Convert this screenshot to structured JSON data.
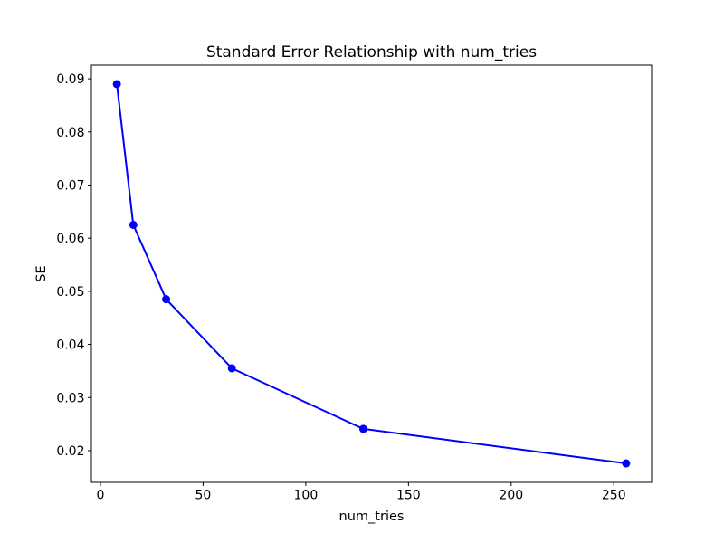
{
  "figure": {
    "background": "#ffffff"
  },
  "chart_data": {
    "type": "line",
    "title": "Standard Error Relationship with num_tries",
    "xlabel": "num_tries",
    "ylabel": "SE",
    "x": [
      8,
      16,
      32,
      64,
      128,
      256
    ],
    "y": [
      0.089,
      0.0625,
      0.0485,
      0.0355,
      0.0241,
      0.0176
    ],
    "series": [
      {
        "name": "SE",
        "x": [
          8,
          16,
          32,
          64,
          128,
          256
        ],
        "values": [
          0.089,
          0.0625,
          0.0485,
          0.0355,
          0.0241,
          0.0176
        ]
      }
    ],
    "xticks": [
      0,
      50,
      100,
      150,
      200,
      250
    ],
    "yticks": [
      0.02,
      0.03,
      0.04,
      0.05,
      0.06,
      0.07,
      0.08,
      0.09
    ],
    "xlim": [
      -4.4,
      268.4
    ],
    "ylim": [
      0.01403,
      0.09257
    ],
    "grid": false,
    "legend": null,
    "line_color": "#0000ff",
    "marker": "circle",
    "marker_color": "#0000ff",
    "axis_color": "#000000",
    "text_color": "#000000"
  }
}
